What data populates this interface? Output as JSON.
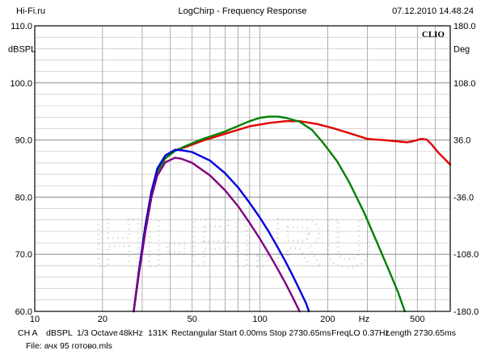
{
  "header": {
    "left": "Hi-Fi.ru",
    "center": "LogChirp - Frequency Response",
    "right": "07.12.2010 14.48.24"
  },
  "watermark": "HI-FI.RU",
  "brand": "CLIO",
  "footer": {
    "channel": "CH A",
    "unit": "dBSPL",
    "smoothing": "1/3 Octave",
    "rate": "48kHz",
    "size": "131K",
    "window": "Rectangular",
    "start": "Start 0.00ms",
    "stop": "Stop 2730.65ms",
    "freqlo": "FreqLO 0.37Hz",
    "length": "Length 2730.65ms",
    "file": "File: ачх 95 готово.mls"
  },
  "chart_data": {
    "type": "line",
    "title": "LogChirp - Frequency Response",
    "xlabel": "Hz",
    "ylabel": "dBSPL",
    "ylabel_right": "Deg",
    "x_scale": "log",
    "xlim": [
      10,
      700
    ],
    "ylim": [
      60,
      110
    ],
    "ylim_right": [
      -180,
      180
    ],
    "grid": true,
    "x_ticks": [
      {
        "value": 10,
        "label": "10"
      },
      {
        "value": 20,
        "label": "20"
      },
      {
        "value": 50,
        "label": "50"
      },
      {
        "value": 100,
        "label": "100"
      },
      {
        "value": 200,
        "label": "200"
      },
      {
        "value": 500,
        "label": "500"
      }
    ],
    "y_ticks": [
      {
        "value": 60,
        "label": "60.0"
      },
      {
        "value": 70,
        "label": "70.0"
      },
      {
        "value": 80,
        "label": "80.0"
      },
      {
        "value": 90,
        "label": "90.0"
      },
      {
        "value": 100,
        "label": "100.0"
      },
      {
        "value": 110,
        "label": "110.0"
      }
    ],
    "y_ticks_right": [
      {
        "value": 60,
        "label": "-180.0"
      },
      {
        "value": 70,
        "label": "-108.0"
      },
      {
        "value": 80,
        "label": "-36.0"
      },
      {
        "value": 90,
        "label": "36.0"
      },
      {
        "value": 100,
        "label": "108.0"
      },
      {
        "value": 110,
        "label": "180.0"
      }
    ],
    "series": [
      {
        "color": "#e00000",
        "points": [
          [
            27.5,
            60
          ],
          [
            29,
            67
          ],
          [
            31,
            75
          ],
          [
            33,
            81
          ],
          [
            35,
            84.5
          ],
          [
            38,
            86.8
          ],
          [
            42,
            88.2
          ],
          [
            47,
            88.8
          ],
          [
            55,
            89.8
          ],
          [
            70,
            91.1
          ],
          [
            90,
            92.4
          ],
          [
            110,
            93
          ],
          [
            130,
            93.3
          ],
          [
            150,
            93.3
          ],
          [
            180,
            92.8
          ],
          [
            210,
            92.1
          ],
          [
            250,
            91.2
          ],
          [
            300,
            90.2
          ],
          [
            350,
            90
          ],
          [
            400,
            89.8
          ],
          [
            450,
            89.6
          ],
          [
            480,
            89.8
          ],
          [
            520,
            90.2
          ],
          [
            550,
            90.1
          ],
          [
            580,
            89.2
          ],
          [
            620,
            87.8
          ],
          [
            650,
            87
          ],
          [
            680,
            86.2
          ],
          [
            700,
            85.7
          ]
        ]
      },
      {
        "color": "#008000",
        "points": [
          [
            27.5,
            60
          ],
          [
            29,
            67
          ],
          [
            31,
            75
          ],
          [
            33,
            81
          ],
          [
            35,
            84.5
          ],
          [
            38,
            86.8
          ],
          [
            42,
            88.1
          ],
          [
            47,
            89
          ],
          [
            55,
            90.1
          ],
          [
            70,
            91.5
          ],
          [
            90,
            93.3
          ],
          [
            100,
            93.9
          ],
          [
            110,
            94.1
          ],
          [
            120,
            94.1
          ],
          [
            130,
            93.9
          ],
          [
            150,
            93.2
          ],
          [
            170,
            91.8
          ],
          [
            190,
            89.6
          ],
          [
            220,
            86.3
          ],
          [
            250,
            82.5
          ],
          [
            290,
            77.3
          ],
          [
            330,
            72.2
          ],
          [
            370,
            67.6
          ],
          [
            410,
            63.4
          ],
          [
            440,
            60
          ]
        ]
      },
      {
        "color": "#0000e0",
        "points": [
          [
            27.5,
            60
          ],
          [
            29,
            67
          ],
          [
            31,
            75
          ],
          [
            33,
            81
          ],
          [
            35,
            85
          ],
          [
            38,
            87.3
          ],
          [
            42,
            88.3
          ],
          [
            45,
            88.2
          ],
          [
            50,
            87.9
          ],
          [
            60,
            86.4
          ],
          [
            70,
            84.2
          ],
          [
            80,
            81.7
          ],
          [
            90,
            79
          ],
          [
            100,
            76.4
          ],
          [
            110,
            73.8
          ],
          [
            120,
            71.2
          ],
          [
            130,
            68.7
          ],
          [
            140,
            66.2
          ],
          [
            150,
            63.8
          ],
          [
            160,
            61.5
          ],
          [
            165,
            60
          ]
        ]
      },
      {
        "color": "#800080",
        "points": [
          [
            27.5,
            60
          ],
          [
            29,
            66.5
          ],
          [
            31,
            74
          ],
          [
            33,
            80
          ],
          [
            35,
            83.8
          ],
          [
            38,
            86.1
          ],
          [
            42,
            86.9
          ],
          [
            45,
            86.7
          ],
          [
            50,
            86
          ],
          [
            60,
            83.8
          ],
          [
            70,
            81.2
          ],
          [
            80,
            78.4
          ],
          [
            90,
            75.5
          ],
          [
            100,
            72.7
          ],
          [
            110,
            70
          ],
          [
            120,
            67.4
          ],
          [
            130,
            64.9
          ],
          [
            140,
            62.4
          ],
          [
            150,
            60
          ]
        ]
      }
    ]
  }
}
